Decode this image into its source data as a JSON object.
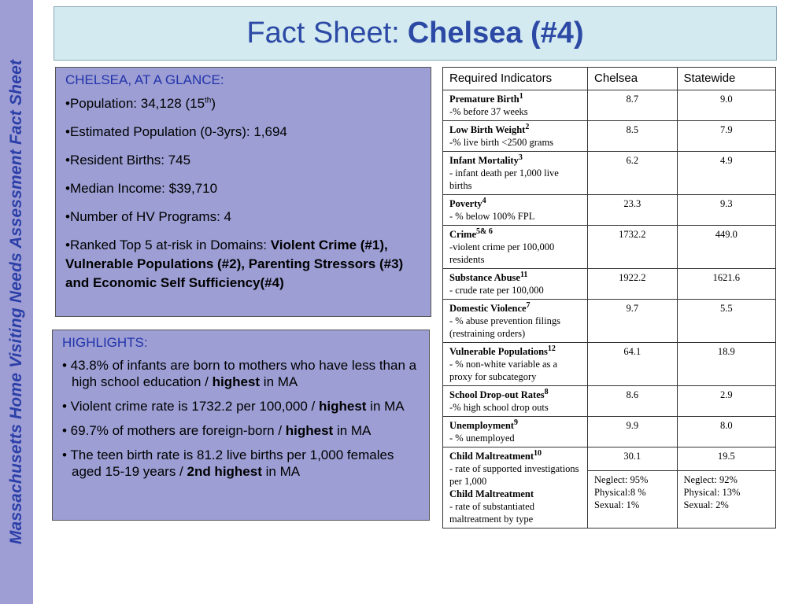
{
  "sidebar": {
    "text": "Massachusetts Home Visiting Needs Assessment Fact Sheet"
  },
  "title": {
    "prefix": "Fact Sheet:",
    "bold": "Chelsea (#4)"
  },
  "glance": {
    "title": "CHELSEA, AT A GLANCE:",
    "population_label": "•Population: 34,128 (15",
    "population_sup": "th",
    "population_end": ")",
    "est_population": "•Estimated Population (0-3yrs): 1,694",
    "resident_births": "•Resident Births: 745",
    "median_income": "•Median Income: $39,710",
    "hv_programs": "•Number of HV Programs: 4",
    "ranked_prefix": "•Ranked Top 5 at-risk in Domains: ",
    "ranked_bold": "Violent Crime (#1), Vulnerable Populations (#2), Parenting Stressors (#3) and Economic Self Sufficiency(#4)"
  },
  "highlights": {
    "title": "HIGHLIGHTS:",
    "items": [
      {
        "pre": "• 43.8% of infants are born to mothers who have less than a high school education / ",
        "bold": "highest",
        "post": " in MA"
      },
      {
        "pre": "• Violent crime rate is 1732.2 per 100,000 / ",
        "bold": "highest",
        "post": " in MA"
      },
      {
        "pre": "• 69.7% of mothers are foreign-born / ",
        "bold": "highest",
        "post": " in MA"
      },
      {
        "pre": "• The teen birth rate is 81.2 live births per 1,000 females aged 15-19 years / ",
        "bold": "2nd highest",
        "post": " in MA"
      }
    ]
  },
  "table": {
    "headers": [
      "Required Indicators",
      "Chelsea",
      "Statewide"
    ],
    "rows": [
      {
        "name": "Premature Birth",
        "sup": "1",
        "desc": "-% before 37 weeks",
        "chelsea": "8.7",
        "state": "9.0"
      },
      {
        "name": "Low Birth Weight",
        "sup": "2",
        "desc": "-% live birth <2500 grams",
        "chelsea": "8.5",
        "state": "7.9"
      },
      {
        "name": "Infant Mortality",
        "sup": "3",
        "desc": "- infant death per 1,000 live births",
        "chelsea": "6.2",
        "state": "4.9"
      },
      {
        "name": "Poverty",
        "sup": "4",
        "desc": "- % below 100% FPL",
        "chelsea": "23.3",
        "state": "9.3"
      },
      {
        "name": "Crime",
        "sup": "5& 6",
        "desc": "-violent crime per 100,000 residents",
        "chelsea": "1732.2",
        "state": "449.0"
      },
      {
        "name": "Substance Abuse",
        "sup": "11",
        "desc": "- crude rate per 100,000",
        "chelsea": "1922.2",
        "state": "1621.6"
      },
      {
        "name": "Domestic Violence",
        "sup": "7",
        "desc": "- % abuse prevention filings (restraining orders)",
        "chelsea": "9.7",
        "state": "5.5"
      },
      {
        "name": "Vulnerable Populations",
        "sup": "12",
        "desc": " - % non-white variable as a proxy for subcategory",
        "chelsea": "64.1",
        "state": "18.9"
      },
      {
        "name": "School Drop-out Rates",
        "sup": "8",
        "desc": "-% high school drop outs",
        "chelsea": "8.6",
        "state": "2.9"
      },
      {
        "name": "Unemployment",
        "sup": "9",
        "desc": "- % unemployed",
        "chelsea": "9.9",
        "state": "8.0"
      }
    ],
    "maltreatment": {
      "name1": "Child Maltreatment",
      "sup1": "10",
      "desc1": "- rate of supported investigations per 1,000",
      "name2": "Child Maltreatment",
      "desc2": "- rate of substantiated maltreatment by type",
      "chelsea_rate": "30.1",
      "state_rate": "19.5",
      "chelsea_types": [
        "Neglect: 95%",
        "Physical:8 %",
        "Sexual: 1%"
      ],
      "state_types": [
        "Neglect: 92%",
        "Physical: 13%",
        "Sexual: 2%"
      ]
    }
  }
}
